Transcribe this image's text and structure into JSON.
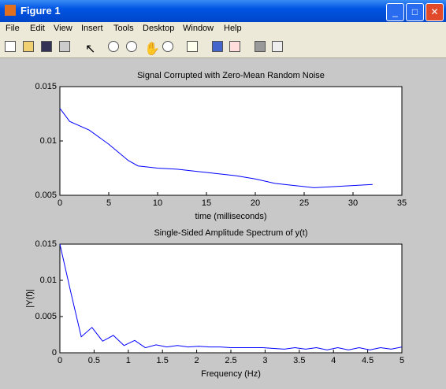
{
  "window": {
    "title": "Figure 1",
    "menu": [
      "File",
      "Edit",
      "View",
      "Insert",
      "Tools",
      "Desktop",
      "Window",
      "Help"
    ]
  },
  "chart_data": [
    {
      "type": "line",
      "title": "Signal Corrupted with Zero-Mean Random Noise",
      "xlabel": "time (milliseconds)",
      "x": [
        0,
        1,
        3,
        5,
        7,
        8,
        10,
        12,
        15,
        18,
        20,
        22,
        24,
        26,
        28,
        30,
        32
      ],
      "values": [
        0.013,
        0.0118,
        0.011,
        0.0097,
        0.0082,
        0.0077,
        0.0075,
        0.0074,
        0.0071,
        0.0068,
        0.0065,
        0.0061,
        0.0059,
        0.0057,
        0.0058,
        0.0059,
        0.006
      ],
      "color": "#0000ff",
      "xlim": [
        0,
        35
      ],
      "ylim": [
        0.005,
        0.015
      ],
      "xticks": [
        0,
        5,
        10,
        15,
        20,
        25,
        30,
        35
      ],
      "yticks": [
        0.005,
        0.01,
        0.015
      ]
    },
    {
      "type": "line",
      "title": "Single-Sided Amplitude Spectrum of y(t)",
      "xlabel": "Frequency (Hz)",
      "ylabel": "|Y(f)|",
      "x": [
        0,
        0.156,
        0.3125,
        0.469,
        0.625,
        0.781,
        0.9375,
        1.094,
        1.25,
        1.406,
        1.5625,
        1.719,
        1.875,
        2.031,
        2.1875,
        2.344,
        2.5,
        2.656,
        2.8125,
        2.969,
        3.125,
        3.281,
        3.4375,
        3.594,
        3.75,
        3.906,
        4.0625,
        4.219,
        4.375,
        4.531,
        4.6875,
        4.844,
        5
      ],
      "values": [
        0.015,
        0.0085,
        0.0022,
        0.0035,
        0.0016,
        0.0024,
        0.001,
        0.0017,
        0.0007,
        0.0011,
        0.0008,
        0.001,
        0.0008,
        0.0009,
        0.0008,
        0.0008,
        0.0007,
        0.0007,
        0.0007,
        0.0007,
        0.0006,
        0.0005,
        0.0007,
        0.0005,
        0.0007,
        0.0004,
        0.0007,
        0.0004,
        0.0007,
        0.0004,
        0.0007,
        0.0005,
        0.0008
      ],
      "color": "#0000ff",
      "xlim": [
        0,
        5
      ],
      "ylim": [
        0,
        0.015
      ],
      "xticks": [
        0,
        0.5,
        1,
        1.5,
        2,
        2.5,
        3,
        3.5,
        4,
        4.5,
        5
      ],
      "yticks": [
        0,
        0.005,
        0.01,
        0.015
      ]
    }
  ]
}
